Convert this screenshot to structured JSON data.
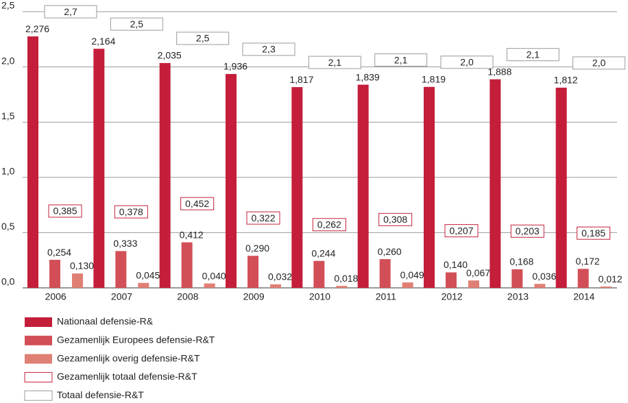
{
  "chart_data": {
    "type": "bar",
    "categories": [
      "2006",
      "2007",
      "2008",
      "2009",
      "2010",
      "2011",
      "2012",
      "2013",
      "2014"
    ],
    "ylim": [
      0,
      2.5
    ],
    "yticks": [
      {
        "value": 0,
        "label": "0,0"
      },
      {
        "value": 0.5,
        "label": "0,5"
      },
      {
        "value": 1,
        "label": "1,0"
      },
      {
        "value": 1.5,
        "label": "1,5"
      },
      {
        "value": 2,
        "label": "2,0"
      },
      {
        "value": 2.5,
        "label": "2,5"
      }
    ],
    "grid": true,
    "series": [
      {
        "name": "Nationaal defensie-R&",
        "color": "#c41e3a",
        "kind": "bar",
        "values": [
          2.276,
          2.164,
          2.035,
          1.936,
          1.817,
          1.839,
          1.819,
          1.888,
          1.812
        ],
        "value_labels": [
          "2,276",
          "2,164",
          "2,035",
          "1,936",
          "1,817",
          "1,839",
          "1,819",
          "1,888",
          "1,812"
        ]
      },
      {
        "name": "Gezamenlijk Europees defensie-R&T",
        "color": "#d24f57",
        "kind": "bar",
        "values": [
          0.254,
          0.333,
          0.412,
          0.29,
          0.244,
          0.26,
          0.14,
          0.168,
          0.172
        ],
        "value_labels": [
          "0,254",
          "0,333",
          "0,412",
          "0,290",
          "0,244",
          "0,260",
          "0,140",
          "0,168",
          "0,172"
        ]
      },
      {
        "name": "Gezamenlijk overig defensie-R&T",
        "color": "#e07f74",
        "kind": "bar",
        "values": [
          0.13,
          0.045,
          0.04,
          0.032,
          0.018,
          0.049,
          0.067,
          0.036,
          0.012
        ],
        "value_labels": [
          "0,130",
          "0,045",
          "0,040",
          "0,032",
          "0,018",
          "0,049",
          "0,067",
          "0,036",
          "0,012"
        ]
      },
      {
        "name": "Gezamenlijk totaal defensie-R&T",
        "color": "#c41e3a",
        "kind": "box",
        "values": [
          0.385,
          0.378,
          0.452,
          0.322,
          0.262,
          0.308,
          0.207,
          0.203,
          0.185
        ],
        "value_labels": [
          "0,385",
          "0,378",
          "0,452",
          "0,322",
          "0,262",
          "0,308",
          "0,207",
          "0,203",
          "0,185"
        ]
      },
      {
        "name": "Totaal defensie-R&T",
        "color": "#999999",
        "kind": "box",
        "values": [
          2.7,
          2.5,
          2.5,
          2.3,
          2.1,
          2.1,
          2.0,
          2.1,
          2.0
        ],
        "value_labels": [
          "2,7",
          "2,5",
          "2,5",
          "2,3",
          "2,1",
          "2,1",
          "2,0",
          "2,1",
          "2,0"
        ]
      }
    ]
  }
}
